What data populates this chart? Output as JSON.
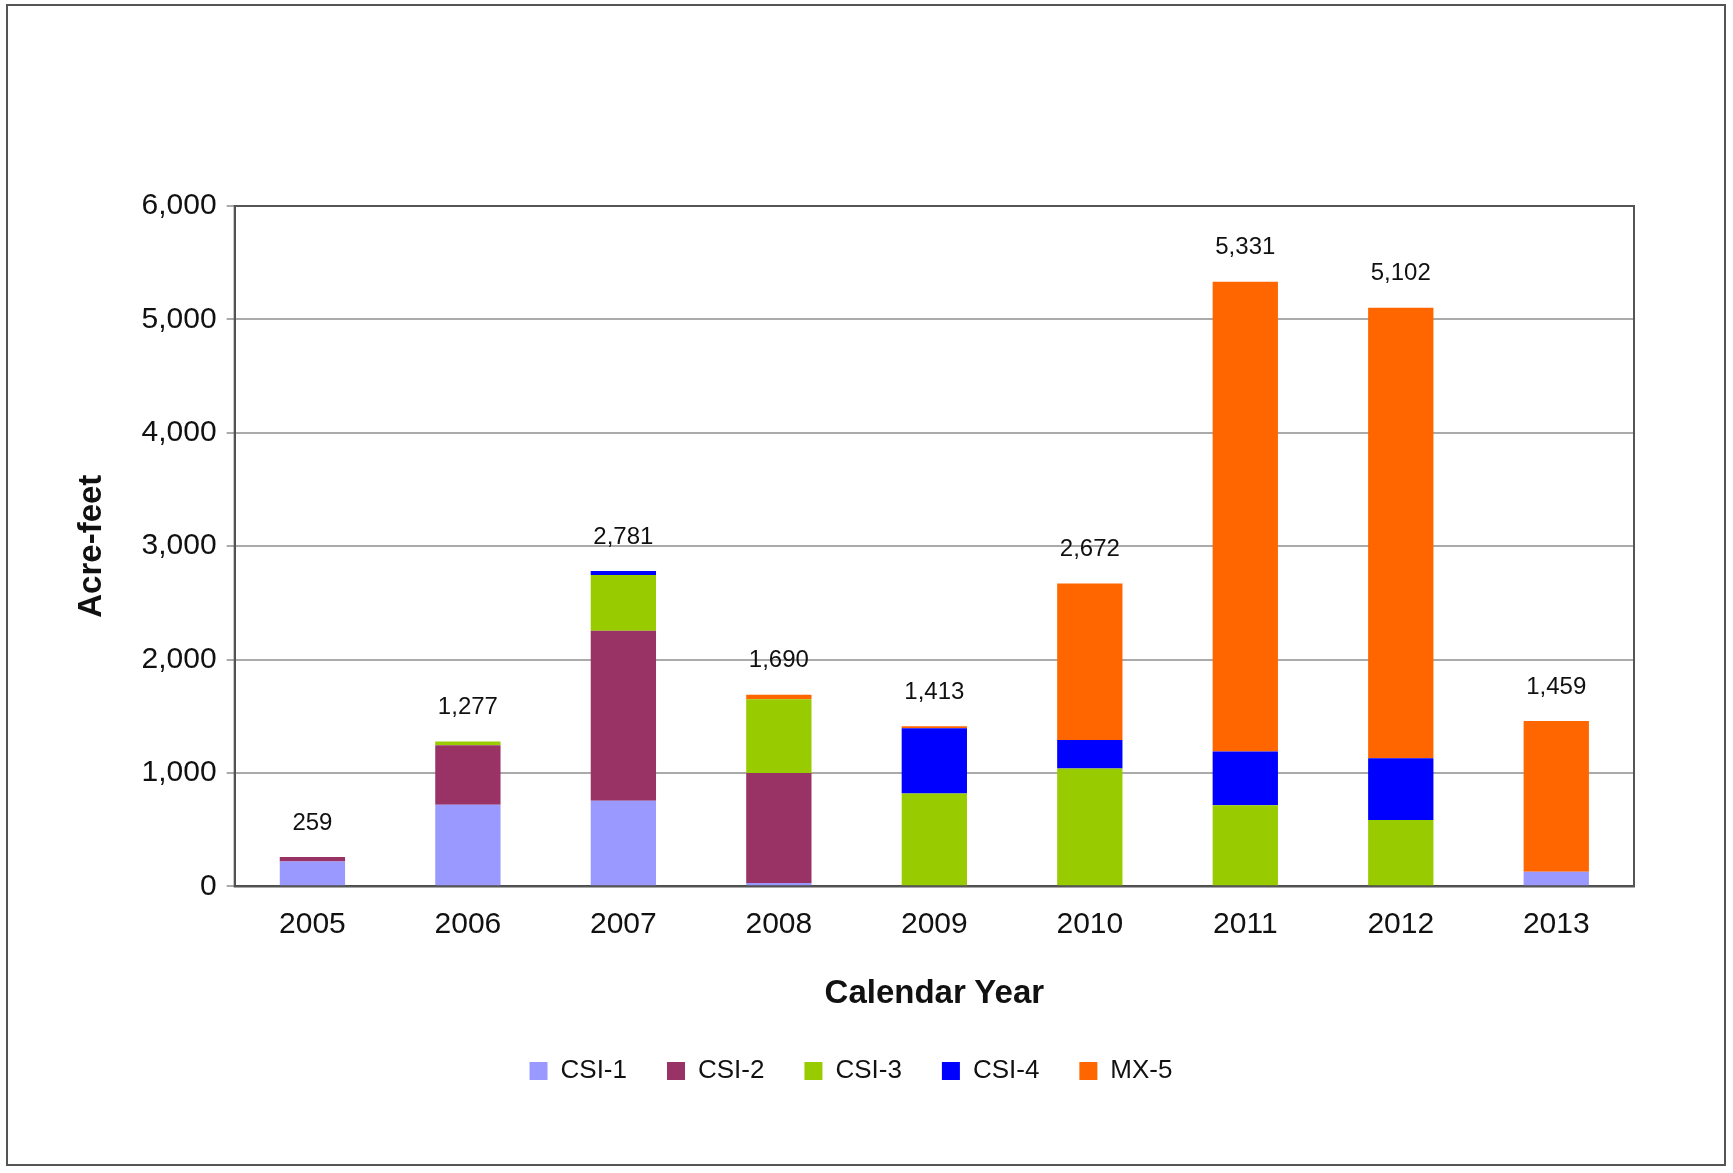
{
  "chart_data": {
    "type": "bar",
    "stacked": true,
    "xlabel": "Calendar Year",
    "ylabel": "Acre-feet",
    "categories": [
      "2005",
      "2006",
      "2007",
      "2008",
      "2009",
      "2010",
      "2011",
      "2012",
      "2013"
    ],
    "series": [
      {
        "name": "CSI-1",
        "color": "#9999ff",
        "values": [
          220,
          720,
          755,
          30,
          0,
          0,
          0,
          0,
          130
        ]
      },
      {
        "name": "CSI-2",
        "color": "#993366",
        "values": [
          39,
          525,
          1500,
          970,
          0,
          0,
          0,
          0,
          0
        ]
      },
      {
        "name": "CSI-3",
        "color": "#99cc00",
        "values": [
          0,
          32,
          490,
          650,
          820,
          1040,
          715,
          585,
          0
        ]
      },
      {
        "name": "CSI-4",
        "color": "#0000ff",
        "values": [
          0,
          0,
          36,
          0,
          575,
          250,
          475,
          545,
          0
        ]
      },
      {
        "name": "MX-5",
        "color": "#ff6600",
        "values": [
          0,
          0,
          0,
          40,
          18,
          1382,
          4141,
          3972,
          1329
        ]
      }
    ],
    "totals": [
      "259",
      "1,277",
      "2,781",
      "1,690",
      "1,413",
      "2,672",
      "5,331",
      "5,102",
      "1,459"
    ],
    "ylim": [
      0,
      6000
    ],
    "yticks": [
      {
        "value": 0,
        "label": "0"
      },
      {
        "value": 1000,
        "label": "1,000"
      },
      {
        "value": 2000,
        "label": "2,000"
      },
      {
        "value": 3000,
        "label": "3,000"
      },
      {
        "value": 4000,
        "label": "4,000"
      },
      {
        "value": 5000,
        "label": "5,000"
      },
      {
        "value": 6000,
        "label": "6,000"
      }
    ],
    "grid": "y",
    "legend": "bottom"
  }
}
